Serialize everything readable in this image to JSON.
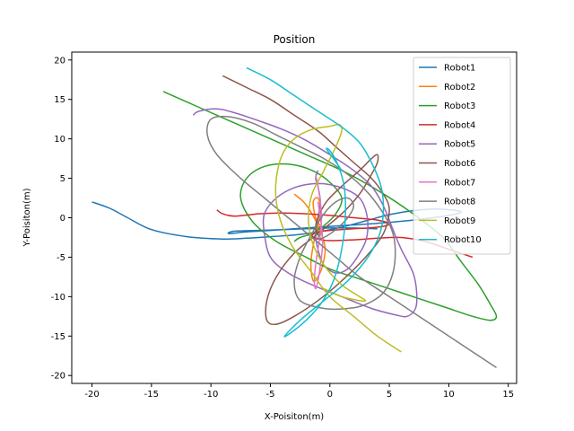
{
  "chart_data": {
    "type": "line",
    "title": "Position",
    "xlabel": "X-Poisiton(m)",
    "ylabel": "Y-Poisiton(m)",
    "xlim": [
      -21.7,
      15.7
    ],
    "ylim": [
      -21.0,
      21.0
    ],
    "xticks": [
      -20,
      -15,
      -10,
      -5,
      0,
      5,
      10,
      15
    ],
    "yticks": [
      -20,
      -15,
      -10,
      -5,
      0,
      5,
      10,
      15,
      20
    ],
    "grid": false,
    "legend_position": "top-right",
    "series": [
      {
        "name": "Robot1",
        "color": "#1f77b4",
        "x": [
          -20,
          -18.5,
          -17,
          -15,
          -12,
          -9,
          -7,
          -5,
          -3,
          -1,
          1,
          3,
          5,
          7,
          9,
          11,
          10,
          7,
          4,
          1,
          -1,
          -3,
          -5,
          -7,
          -8.5,
          -8,
          -6,
          -4,
          -2,
          0,
          2,
          4
        ],
        "y": [
          2,
          1.2,
          0,
          -1.5,
          -2.4,
          -2.7,
          -2.6,
          -2.4,
          -2.2,
          -1.8,
          -1.2,
          -0.4,
          0.4,
          0.9,
          1.1,
          0.8,
          0.3,
          -0.3,
          -0.7,
          -1.0,
          -1.2,
          -1.4,
          -1.6,
          -1.8,
          -2.0,
          -1.7,
          -1.6,
          -1.5,
          -1.4,
          -1.3,
          -1.3,
          -1.4
        ]
      },
      {
        "name": "Robot2",
        "color": "#ff7f0e",
        "x": [
          -3,
          -2.2,
          -1.5,
          -1.0,
          -0.6,
          -0.4,
          -0.6,
          -1.0,
          -1.4,
          -1.6,
          -1.4,
          -1.0,
          -0.8,
          -1.0,
          -1.4,
          -1.2,
          -0.8
        ],
        "y": [
          3,
          2,
          0.5,
          -1,
          -2.5,
          -4,
          -6,
          -7.5,
          -8,
          -6,
          -3.5,
          -1,
          1,
          2.5,
          2,
          0,
          -1
        ]
      },
      {
        "name": "Robot3",
        "color": "#2ca02c",
        "x": [
          -14,
          -11,
          -8,
          -5,
          -2,
          1,
          4,
          7,
          9.5,
          11,
          12.5,
          13.5,
          14,
          13.5,
          12,
          10,
          8,
          6,
          4,
          2,
          0,
          -2,
          -4.5,
          -6.5,
          -7.5,
          -7,
          -5.5,
          -3.5,
          -1.5,
          0,
          1,
          0.5,
          -0.5,
          -1.5,
          -2.5,
          -3
        ],
        "y": [
          16,
          14,
          12,
          10,
          8,
          6,
          3.5,
          0.5,
          -2.5,
          -5.5,
          -8.5,
          -11,
          -12.5,
          -13,
          -12.5,
          -11.5,
          -10.5,
          -9.5,
          -8.5,
          -7.5,
          -6.5,
          -5,
          -3,
          -0.5,
          2.5,
          5,
          6.5,
          6.8,
          6,
          4.5,
          2.5,
          0.5,
          -1,
          -2,
          -2.5,
          -3
        ]
      },
      {
        "name": "Robot4",
        "color": "#d62728",
        "x": [
          -9.5,
          -9,
          -8,
          -6,
          -4,
          -2,
          0,
          2,
          4,
          5,
          4,
          2,
          0,
          -1,
          -1.5,
          -1,
          0,
          2,
          4,
          6,
          8,
          10,
          12
        ],
        "y": [
          1,
          0.5,
          0.2,
          0.5,
          0.6,
          0.5,
          0.3,
          0,
          -0.3,
          -0.8,
          -1.2,
          -1.4,
          -1.6,
          -1.8,
          -2.3,
          -2.7,
          -2.9,
          -2.8,
          -2.6,
          -2.5,
          -3,
          -4,
          -5
        ]
      },
      {
        "name": "Robot5",
        "color": "#9467bd",
        "x": [
          -11.5,
          -11,
          -9.5,
          -8,
          -6,
          -4,
          -2,
          0,
          2,
          3.5,
          4.5,
          5.3,
          6,
          7,
          7.3,
          7.2,
          6.5,
          5.5,
          3.5,
          1,
          -1.5,
          -3.5,
          -5,
          -5.5,
          -5.5,
          -4.5,
          -3,
          -1.5,
          0,
          1.5,
          2.5,
          3,
          3.2,
          3,
          2.3,
          1.5,
          0.5,
          -0.5,
          -1,
          -1.2,
          -1.0,
          -0.8,
          -1.0,
          -1.2,
          -1.0
        ],
        "y": [
          13,
          13.5,
          13.8,
          13.3,
          12.3,
          11.2,
          9.8,
          8,
          6,
          4,
          1.5,
          -1.5,
          -4,
          -7,
          -9.5,
          -11.5,
          -12.5,
          -12.3,
          -11.5,
          -10,
          -8.5,
          -7,
          -5,
          -2,
          0.5,
          2.5,
          3.8,
          4.3,
          4.2,
          3.5,
          2.5,
          1,
          -1,
          -3,
          -5,
          -6.5,
          -7,
          -6,
          -4,
          -2,
          0,
          2,
          4,
          5,
          6
        ]
      },
      {
        "name": "Robot6",
        "color": "#8c564b",
        "x": [
          -9,
          -7,
          -5,
          -3,
          -1,
          0.5,
          2,
          3.5,
          4.5,
          5,
          4.5,
          3,
          1,
          -1,
          -3,
          -4.5,
          -5.3,
          -5.3,
          -4.5,
          -3,
          -1,
          1,
          2.5,
          3.5,
          4,
          4,
          3.5,
          2.5,
          1,
          -0.3,
          -1,
          -1.2,
          -0.8
        ],
        "y": [
          18,
          16.5,
          15,
          13,
          11,
          9,
          7,
          5,
          3,
          1,
          -2,
          -5,
          -8,
          -10.5,
          -12.5,
          -13.5,
          -13,
          -10.5,
          -7.5,
          -4.5,
          -2,
          0.5,
          3,
          5.5,
          7,
          8,
          7.5,
          6,
          4,
          2,
          0,
          -1.5,
          -2.5
        ]
      },
      {
        "name": "Robot7",
        "color": "#e377c2",
        "x": [
          -1.2,
          -1.0,
          -0.8,
          -0.7,
          -0.8,
          -1.0,
          -1.2,
          -1.3,
          -1.2,
          -1.0,
          -0.8,
          -0.6,
          -0.8,
          -1.0
        ],
        "y": [
          5.5,
          4,
          2,
          0,
          -2,
          -4,
          -6,
          -8,
          -9,
          -8,
          -6,
          -3,
          0,
          2
        ]
      },
      {
        "name": "Robot8",
        "color": "#7f7f7f",
        "x": [
          14,
          11,
          8,
          5,
          2.5,
          0.5,
          -1.5,
          -3.5,
          -5.5,
          -7.5,
          -9.5,
          -10.3,
          -10,
          -8.5,
          -6.5,
          -4.5,
          -2.5,
          -0.5,
          1.5,
          3,
          4.3,
          5.2,
          5.5,
          5.3,
          4.5,
          3,
          1.5,
          -0.5,
          -2.5,
          -3,
          -2.5,
          -1.5,
          -0.5,
          0.5,
          1.5,
          2,
          1.5,
          0.5,
          -0.5,
          -1,
          -0.8
        ],
        "y": [
          -19,
          -16,
          -13,
          -10,
          -7.5,
          -5,
          -2.5,
          0,
          2.5,
          5,
          8,
          10.5,
          12.5,
          12.8,
          12,
          10.5,
          9,
          7.5,
          5.5,
          3.5,
          1,
          -1.5,
          -4,
          -7,
          -9.5,
          -11,
          -11.5,
          -11.5,
          -10.5,
          -8,
          -5,
          -2,
          0.5,
          2,
          2.5,
          1.5,
          0,
          -1.5,
          -2.5,
          -2.6,
          -2
        ]
      },
      {
        "name": "Robot9",
        "color": "#bcbd22",
        "x": [
          6,
          4,
          2,
          0,
          -1.5,
          -3,
          -4,
          -4.5,
          -4.5,
          -4,
          -3,
          -1.5,
          0,
          0.8,
          1,
          0.5,
          -0.5,
          -1.5,
          -1.8,
          -1.5,
          -0.5,
          1,
          2.5,
          3,
          2.5,
          1,
          -0.5
        ],
        "y": [
          -17,
          -15,
          -12.5,
          -10,
          -7,
          -4,
          -1,
          2,
          5,
          8,
          10,
          11.2,
          11.6,
          11.8,
          11,
          9,
          6,
          3,
          0,
          -3,
          -6,
          -8.5,
          -10,
          -10.5,
          -10.5,
          -10,
          -9
        ]
      },
      {
        "name": "Robot10",
        "color": "#17becf",
        "x": [
          -7,
          -5,
          -3,
          -1,
          1,
          2.5,
          3.5,
          4.3,
          4.5,
          4.2,
          3.2,
          1.5,
          -0.5,
          -2.5,
          -3.8,
          -3.2,
          -2,
          -0.8,
          0.3,
          1,
          1.3,
          1.2,
          0.6,
          0,
          -0.3,
          -0.1,
          0.3,
          1
        ],
        "y": [
          19,
          17.5,
          15.5,
          13.5,
          11.5,
          9.5,
          7,
          4,
          1,
          -2,
          -5,
          -8,
          -10.5,
          -13,
          -15,
          -14.5,
          -13,
          -11,
          -8,
          -4,
          0,
          4,
          7,
          8.5,
          8.8,
          8.3,
          7.5,
          6
        ]
      }
    ]
  }
}
